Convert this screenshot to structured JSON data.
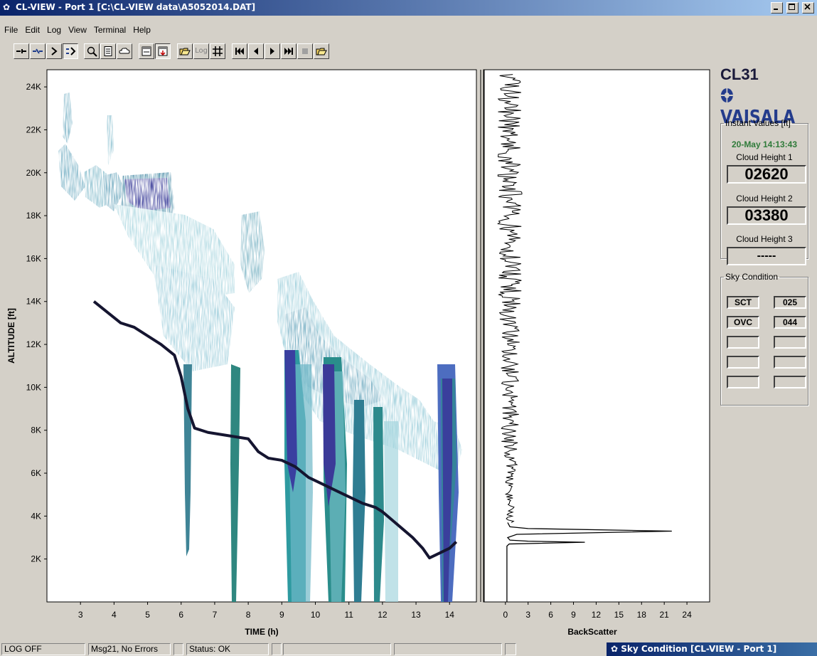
{
  "window": {
    "title": "CL-VIEW - Port 1  [C:\\CL-VIEW data\\A5052014.DAT]",
    "minimize_icon": "minimize-icon",
    "maximize_icon": "maximize-icon",
    "close_icon": "close-icon"
  },
  "menu": [
    "File",
    "Edit",
    "Log",
    "View",
    "Terminal",
    "Help"
  ],
  "toolbar": {
    "log_label": "Log",
    "buttons": [
      "connect-icon",
      "disconnect-icon",
      "prompt-icon",
      "run-icon",
      "zoom-icon",
      "report-icon",
      "cloud-icon",
      "window-icon",
      "save-window-icon",
      "open-folder-icon",
      "log-icon",
      "grid-icon",
      "first-icon",
      "previous-icon",
      "play-icon",
      "fast-forward-icon",
      "stop-icon",
      "open-file-icon"
    ]
  },
  "chart_data": [
    {
      "type": "heatmap",
      "title": "",
      "xlabel": "TIME (h)",
      "ylabel": "ALTITUDE [ft]",
      "x_ticks": [
        "3",
        "4",
        "5",
        "6",
        "7",
        "8",
        "9",
        "10",
        "11",
        "12",
        "13",
        "14"
      ],
      "y_ticks": [
        "24K",
        "22K",
        "20K",
        "18K",
        "16K",
        "14K",
        "12K",
        "10K",
        "8K",
        "6K",
        "4K",
        "2K"
      ],
      "xlim": [
        2.0,
        14.8
      ],
      "ylim": [
        0,
        24800
      ],
      "cloud_base_trace": {
        "x": [
          3.4,
          3.8,
          4.2,
          4.6,
          5.0,
          5.4,
          5.8,
          6.0,
          6.2,
          6.4,
          6.8,
          7.2,
          7.6,
          8.0,
          8.3,
          8.6,
          9.0,
          9.4,
          9.8,
          10.2,
          10.6,
          11.0,
          11.4,
          11.8,
          12.0,
          12.3,
          12.6,
          12.9,
          13.2,
          13.4,
          13.6,
          14.0,
          14.2
        ],
        "y": [
          14000,
          13500,
          13000,
          12800,
          12400,
          12000,
          11500,
          10500,
          9000,
          8100,
          7900,
          7800,
          7700,
          7600,
          7000,
          6700,
          6600,
          6300,
          5800,
          5500,
          5200,
          4900,
          4600,
          4400,
          4200,
          3800,
          3400,
          3000,
          2500,
          2050,
          2200,
          2500,
          2800
        ]
      }
    },
    {
      "type": "line",
      "title": "",
      "xlabel": "BackScatter",
      "ylabel": "",
      "x_ticks": [
        "0",
        "3",
        "6",
        "9",
        "12",
        "15",
        "18",
        "21",
        "24"
      ],
      "xlim": [
        -2.8,
        27.0
      ],
      "ylim": [
        0,
        24800
      ],
      "series": [
        {
          "x": [
            0.2,
            0.2,
            0.3,
            0.3,
            1.0,
            22.0,
            3.0,
            0.4,
            0.2,
            0.3,
            0.5,
            10.5,
            2.0,
            0.3,
            0.2,
            0.2
          ],
          "y": [
            0,
            1000,
            2000,
            2600,
            3000,
            3200,
            3350,
            3700,
            4500,
            6000,
            2780,
            2780,
            2880,
            3500,
            9000,
            24500
          ]
        }
      ]
    }
  ],
  "panel": {
    "model": "CL31",
    "brand": "VAISALA",
    "instant_title": "Instant Values [ft]",
    "datetime": "20-May 14:13:43",
    "ch1_label": "Cloud Height 1",
    "ch1_value": "02620",
    "ch2_label": "Cloud Height 2",
    "ch2_value": "03380",
    "ch3_label": "Cloud Height 3",
    "ch3_value": "-----",
    "sky_title": "Sky Condition",
    "sky": [
      {
        "cover": "SCT",
        "height": "025"
      },
      {
        "cover": "OVC",
        "height": "044"
      },
      {
        "cover": "",
        "height": ""
      },
      {
        "cover": "",
        "height": ""
      },
      {
        "cover": "",
        "height": ""
      }
    ]
  },
  "status": {
    "log": "LOG OFF",
    "msg": "Msg21, No Errors",
    "state": "Status: OK"
  },
  "taskbar": {
    "label": "Sky Condition [CL-VIEW - Port 1]"
  }
}
